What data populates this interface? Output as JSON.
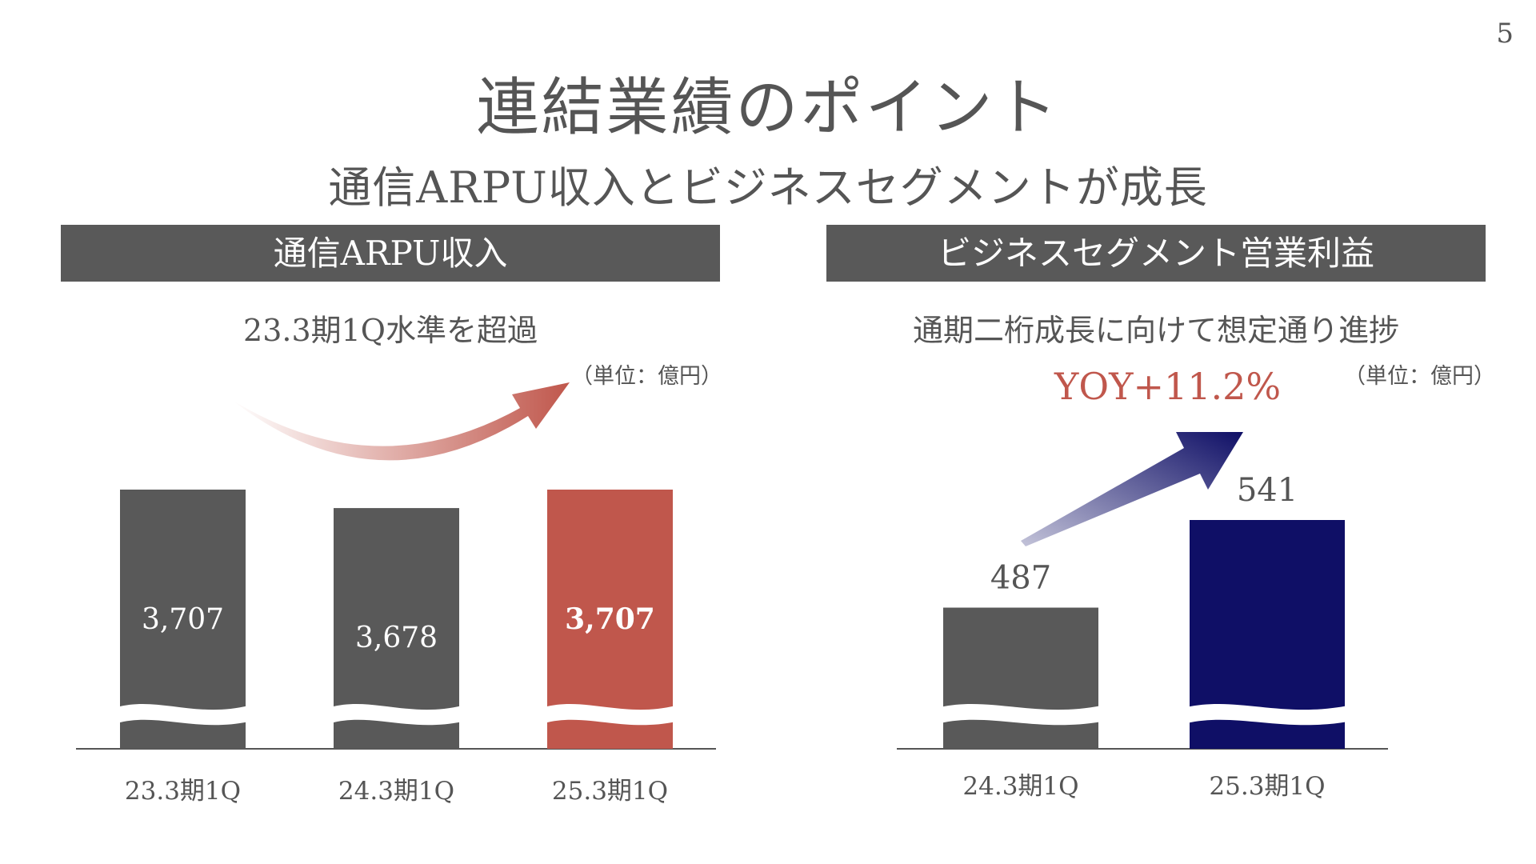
{
  "page_number": "5",
  "title": "連結業績のポイント",
  "subtitle": "通信ARPU収入とビジネスセグメントが成長",
  "colors": {
    "gray": "#595959",
    "accent_red": "#c0574c",
    "navy": "#0f0f66",
    "axis": "#555555",
    "text": "#555555"
  },
  "left_panel": {
    "header": "通信ARPU収入",
    "subheading": "23.3期1Q水準を超過",
    "unit": "（単位：億円）"
  },
  "right_panel": {
    "header": "ビジネスセグメント営業利益",
    "subheading": "通期二桁成長に向けて想定通り進捗",
    "unit": "（単位：億円）",
    "yoy": "YOY+11.2%"
  },
  "chart_data": [
    {
      "type": "bar",
      "title": "通信ARPU収入",
      "categories": [
        "23.3期1Q",
        "24.3期1Q",
        "25.3期1Q"
      ],
      "values": [
        3707,
        3678,
        3707
      ],
      "value_labels": [
        "3,707",
        "3,678",
        "3,707"
      ],
      "bar_colors": [
        "#595959",
        "#595959",
        "#c0574c"
      ],
      "ylim": [
        3300,
        3707
      ],
      "broken_axis": true,
      "grid": false,
      "unit": "（単位：億円）",
      "annotation": "23.3期1Q水準を超過"
    },
    {
      "type": "bar",
      "title": "ビジネスセグメント営業利益",
      "categories": [
        "24.3期1Q",
        "25.3期1Q"
      ],
      "values": [
        487,
        541
      ],
      "value_labels": [
        "487",
        "541"
      ],
      "bar_colors": [
        "#595959",
        "#0f0f66"
      ],
      "ylim": [
        400,
        541
      ],
      "broken_axis": true,
      "grid": false,
      "unit": "（単位：億円）",
      "annotation": "YOY+11.2%"
    }
  ]
}
